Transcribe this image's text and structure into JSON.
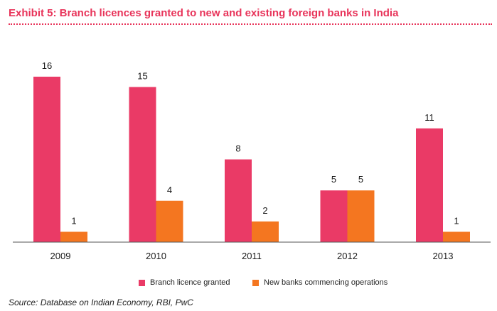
{
  "header": {
    "title": "Exhibit 5: Branch licences granted to new and existing foreign banks in India"
  },
  "chart_data": {
    "type": "bar",
    "categories": [
      "2009",
      "2010",
      "2011",
      "2012",
      "2013"
    ],
    "series": [
      {
        "name": "Branch licence granted",
        "values": [
          16,
          15,
          8,
          5,
          11
        ],
        "color": "#ea3a66"
      },
      {
        "name": "New banks commencing operations",
        "values": [
          1,
          4,
          2,
          5,
          1
        ],
        "color": "#f47620"
      }
    ],
    "ylim": [
      0,
      16
    ],
    "grid": false,
    "legend_position": "bottom-center",
    "data_labels": true
  },
  "source": "Source: Database on Indian Economy, RBI, PwC"
}
